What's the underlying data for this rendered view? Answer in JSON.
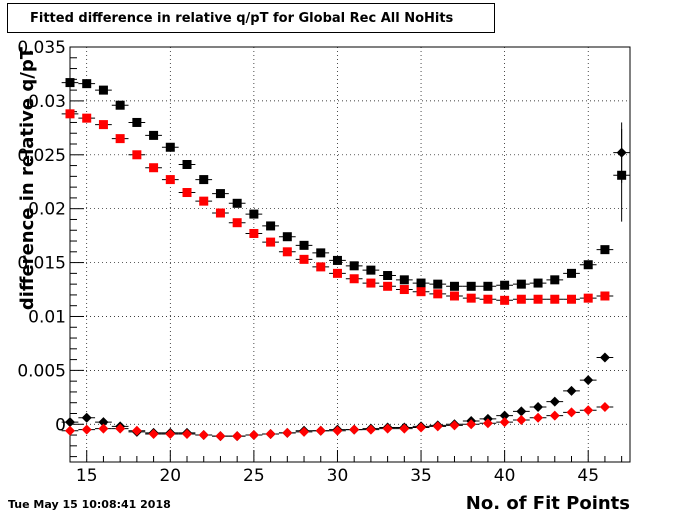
{
  "title": "Fitted difference in relative q/pT  for Global Rec All NoHits",
  "timestamp": "Tue May 15 10:08:41 2018",
  "chart_data": {
    "type": "scatter",
    "title": "Fitted difference in relative q/pT  for Global Rec All NoHits",
    "xlabel": "No. of Fit Points",
    "ylabel": "difference in relative q/pT",
    "xlim": [
      14,
      47.5
    ],
    "ylim": [
      -0.0035,
      0.035
    ],
    "xticks": [
      "15",
      "20",
      "25",
      "30",
      "35",
      "40",
      "45"
    ],
    "yticks": [
      "0",
      "0.005",
      "0.01",
      "0.015",
      "0.02",
      "0.025",
      "0.03",
      "0.035"
    ],
    "grid": true,
    "series": [
      {
        "marker": "square",
        "color": "#000000",
        "x": [
          14,
          15,
          16,
          17,
          18,
          19,
          20,
          21,
          22,
          23,
          24,
          25,
          26,
          27,
          28,
          29,
          30,
          31,
          32,
          33,
          34,
          35,
          36,
          37,
          38,
          39,
          40,
          41,
          42,
          43,
          44,
          45,
          46,
          47
        ],
        "y": [
          0.0317,
          0.0316,
          0.031,
          0.0296,
          0.028,
          0.0268,
          0.0257,
          0.0241,
          0.0227,
          0.0214,
          0.0205,
          0.0195,
          0.0184,
          0.0174,
          0.0166,
          0.0159,
          0.0152,
          0.0147,
          0.0143,
          0.0138,
          0.0134,
          0.0131,
          0.013,
          0.0128,
          0.0128,
          0.0128,
          0.0129,
          0.013,
          0.0131,
          0.0134,
          0.014,
          0.0148,
          0.0162,
          0.0231
        ],
        "yerr": [
          0,
          0,
          0,
          0,
          0,
          0,
          0,
          0,
          0,
          0,
          0,
          0,
          0,
          0,
          0,
          0,
          0,
          0,
          0,
          0,
          0,
          0,
          0,
          0,
          0,
          0,
          0,
          0,
          0,
          0,
          0,
          0,
          0,
          0.0043
        ]
      },
      {
        "marker": "square",
        "color": "#ff0000",
        "x": [
          14,
          15,
          16,
          17,
          18,
          19,
          20,
          21,
          22,
          23,
          24,
          25,
          26,
          27,
          28,
          29,
          30,
          31,
          32,
          33,
          34,
          35,
          36,
          37,
          38,
          39,
          40,
          41,
          42,
          43,
          44,
          45,
          46
        ],
        "y": [
          0.0288,
          0.0284,
          0.0278,
          0.0265,
          0.025,
          0.0238,
          0.0227,
          0.0215,
          0.0207,
          0.0196,
          0.0187,
          0.0177,
          0.0169,
          0.016,
          0.0153,
          0.0146,
          0.014,
          0.0135,
          0.0131,
          0.0128,
          0.0125,
          0.0123,
          0.0121,
          0.0119,
          0.0117,
          0.0116,
          0.0115,
          0.0116,
          0.0116,
          0.0116,
          0.0116,
          0.0117,
          0.0119
        ]
      },
      {
        "marker": "diamond",
        "color": "#000000",
        "x": [
          14,
          15,
          16,
          17,
          18,
          19,
          20,
          21,
          22,
          23,
          24,
          25,
          26,
          27,
          28,
          29,
          30,
          31,
          32,
          33,
          34,
          35,
          36,
          37,
          38,
          39,
          40,
          41,
          42,
          43,
          44,
          45,
          46,
          47
        ],
        "y": [
          0.0002,
          0.0006,
          0.0002,
          -0.0002,
          -0.0007,
          -0.0008,
          -0.0008,
          -0.0008,
          -0.001,
          -0.0011,
          -0.0011,
          -0.001,
          -0.0009,
          -0.0008,
          -0.0006,
          -0.0006,
          -0.0005,
          -0.0005,
          -0.0004,
          -0.0003,
          -0.0003,
          -0.0002,
          -0.0001,
          0.0,
          0.0003,
          0.0005,
          0.0008,
          0.0012,
          0.0016,
          0.0021,
          0.0031,
          0.0041,
          0.0062,
          0.0252
        ],
        "yerr": [
          0,
          0,
          0,
          0,
          0,
          0,
          0,
          0,
          0,
          0,
          0,
          0,
          0,
          0,
          0,
          0,
          0,
          0,
          0,
          0,
          0,
          0,
          0,
          0,
          0,
          0,
          0,
          0,
          0,
          0,
          0,
          0,
          0,
          0.0028
        ]
      },
      {
        "marker": "diamond",
        "color": "#ff0000",
        "x": [
          14,
          15,
          16,
          17,
          18,
          19,
          20,
          21,
          22,
          23,
          24,
          25,
          26,
          27,
          28,
          29,
          30,
          31,
          32,
          33,
          34,
          35,
          36,
          37,
          38,
          39,
          40,
          41,
          42,
          43,
          44,
          45,
          46
        ],
        "y": [
          -0.0006,
          -0.0005,
          -0.0004,
          -0.0004,
          -0.0006,
          -0.0009,
          -0.0009,
          -0.0009,
          -0.001,
          -0.0011,
          -0.0011,
          -0.001,
          -0.0009,
          -0.0008,
          -0.0007,
          -0.0006,
          -0.0006,
          -0.0005,
          -0.0005,
          -0.0004,
          -0.0004,
          -0.0003,
          -0.0002,
          -0.0001,
          0.0,
          0.0001,
          0.0002,
          0.0004,
          0.0006,
          0.0008,
          0.0011,
          0.0013,
          0.0016
        ]
      }
    ]
  }
}
